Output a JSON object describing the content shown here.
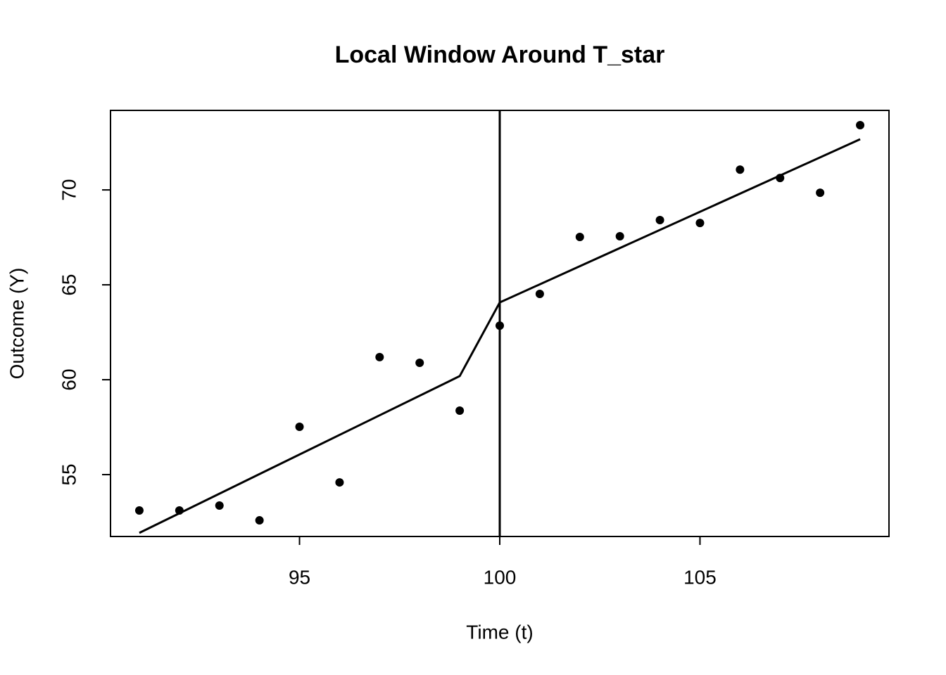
{
  "chart_data": {
    "type": "scatter",
    "title": "Local Window Around T_star",
    "x_label": "Time (t)",
    "y_label": "Outcome (Y)",
    "color": "#000000",
    "points": {
      "x": [
        91,
        92,
        93,
        94,
        95,
        96,
        97,
        98,
        99,
        100,
        101,
        102,
        103,
        104,
        105,
        106,
        107,
        108,
        109
      ],
      "values": [
        53.11,
        53.11,
        53.37,
        52.59,
        57.52,
        54.59,
        61.19,
        60.89,
        58.37,
        62.85,
        64.52,
        67.52,
        67.56,
        68.41,
        68.26,
        71.07,
        70.63,
        69.85,
        73.41
      ]
    },
    "fit": {
      "x": [
        91,
        99,
        100,
        109
      ],
      "values": [
        51.93,
        60.19,
        64.07,
        72.67
      ]
    },
    "vline": 100,
    "xlim": [
      90.28,
      109.72
    ],
    "ylim": [
      51.74,
      74.19
    ],
    "xticks": [
      95,
      100,
      105
    ],
    "yticks": [
      55,
      60,
      65,
      70
    ]
  }
}
